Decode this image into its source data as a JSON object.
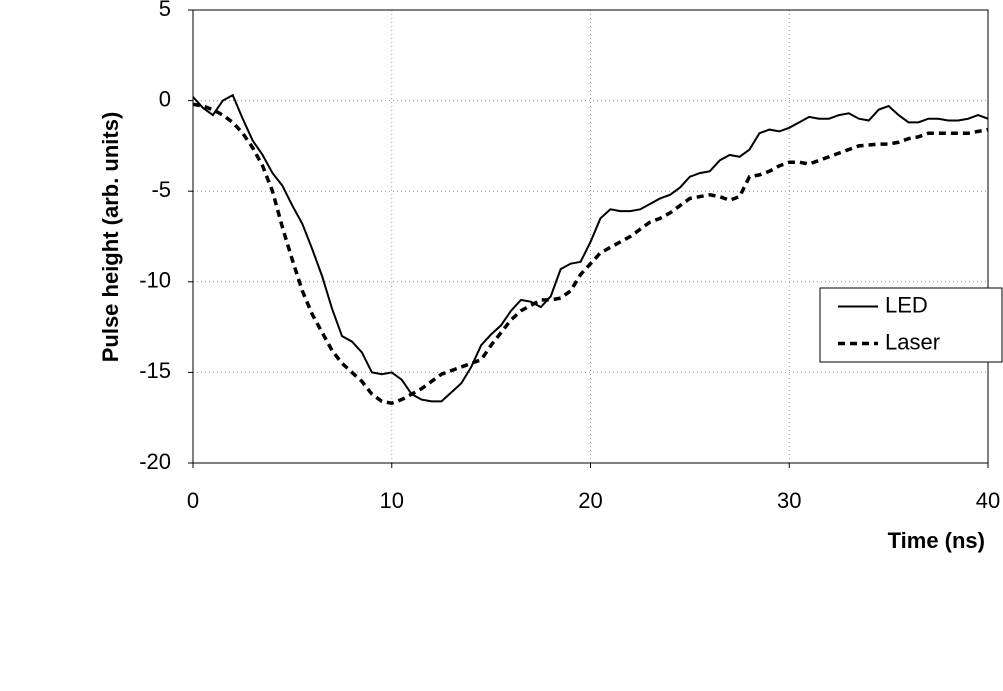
{
  "chart_data": {
    "type": "line",
    "xlabel": "Time (ns)",
    "ylabel": "Pulse height (arb. units)",
    "x": [
      0,
      0.5,
      1,
      1.5,
      2,
      2.5,
      3,
      3.5,
      4,
      4.5,
      5,
      5.5,
      6,
      6.5,
      7,
      7.5,
      8,
      8.5,
      9,
      9.5,
      10,
      10.5,
      11,
      11.5,
      12,
      12.5,
      13,
      13.5,
      14,
      14.5,
      15,
      15.5,
      16,
      16.5,
      17,
      17.5,
      18,
      18.5,
      19,
      19.5,
      20,
      20.5,
      21,
      21.5,
      22,
      22.5,
      23,
      23.5,
      24,
      24.5,
      25,
      25.5,
      26,
      26.5,
      27,
      27.5,
      28,
      28.5,
      29,
      29.5,
      30,
      30.5,
      31,
      31.5,
      32,
      32.5,
      33,
      33.5,
      34,
      34.5,
      35,
      35.5,
      36,
      36.5,
      37,
      37.5,
      38,
      38.5,
      39,
      39.5,
      40
    ],
    "series": [
      {
        "name": "LED",
        "color": "#000000",
        "style": "solid",
        "values": [
          0.2,
          -0.4,
          -0.8,
          0,
          0.3,
          -1,
          -2.2,
          -3,
          -4,
          -4.7,
          -5.8,
          -6.8,
          -8.2,
          -9.7,
          -11.5,
          -13,
          -13.3,
          -13.9,
          -15,
          -15.1,
          -15,
          -15.4,
          -16.2,
          -16.5,
          -16.6,
          -16.6,
          -16.1,
          -15.6,
          -14.7,
          -13.5,
          -12.9,
          -12.4,
          -11.6,
          -11,
          -11.1,
          -11.4,
          -10.8,
          -9.3,
          -9,
          -8.9,
          -7.8,
          -6.5,
          -6,
          -6.1,
          -6.1,
          -6,
          -5.7,
          -5.4,
          -5.2,
          -4.8,
          -4.2,
          -4,
          -3.9,
          -3.3,
          -3,
          -3.1,
          -2.7,
          -1.8,
          -1.6,
          -1.7,
          -1.5,
          -1.2,
          -0.9,
          -1,
          -1,
          -0.8,
          -0.7,
          -1,
          -1.1,
          -0.5,
          -0.3,
          -0.8,
          -1.2,
          -1.2,
          -1,
          -1,
          -1.1,
          -1.1,
          -1,
          -0.8,
          -1
        ]
      },
      {
        "name": "Laser",
        "color": "#000000",
        "style": "dashed",
        "values": [
          -0.2,
          -0.3,
          -0.5,
          -0.8,
          -1.2,
          -1.8,
          -2.6,
          -3.6,
          -5,
          -7,
          -8.8,
          -10.5,
          -11.8,
          -12.8,
          -13.8,
          -14.5,
          -15,
          -15.5,
          -16.2,
          -16.6,
          -16.7,
          -16.5,
          -16.2,
          -15.9,
          -15.5,
          -15.1,
          -14.9,
          -14.7,
          -14.5,
          -14.3,
          -13.5,
          -12.8,
          -12.1,
          -11.6,
          -11.3,
          -11,
          -11,
          -10.9,
          -10.5,
          -9.6,
          -9,
          -8.4,
          -8.1,
          -7.8,
          -7.5,
          -7.1,
          -6.7,
          -6.5,
          -6.2,
          -5.8,
          -5.4,
          -5.3,
          -5.2,
          -5.3,
          -5.5,
          -5.3,
          -4.2,
          -4.1,
          -3.9,
          -3.6,
          -3.4,
          -3.4,
          -3.5,
          -3.3,
          -3.1,
          -2.9,
          -2.7,
          -2.5,
          -2.45,
          -2.4,
          -2.4,
          -2.3,
          -2.1,
          -2,
          -1.8,
          -1.8,
          -1.8,
          -1.8,
          -1.8,
          -1.7,
          -1.6
        ]
      }
    ],
    "xlim": [
      0,
      40
    ],
    "xticks": [
      0,
      10,
      20,
      30,
      40
    ],
    "ylim": [
      -20,
      5
    ],
    "yticks": [
      -20,
      -15,
      -10,
      -5,
      0,
      5
    ],
    "grid": true,
    "legend": "right"
  }
}
